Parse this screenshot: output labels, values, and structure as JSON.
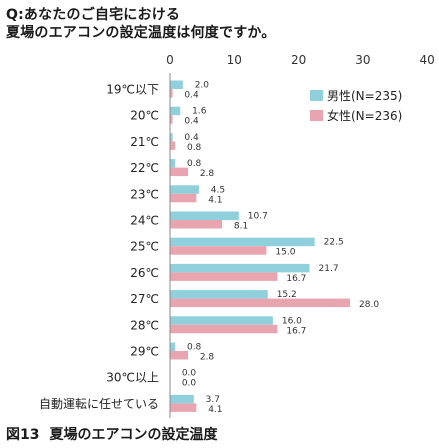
{
  "header": {
    "question_line1": "Q:あなたのご自宅における",
    "question_line2": "夏場のエアコンの設定温度は何度ですか。"
  },
  "caption": {
    "number": "図13",
    "text": "夏場のエアコンの設定温度"
  },
  "colors": {
    "male": "#8fd0dc",
    "female": "#e8a5b0"
  },
  "chart_data": {
    "type": "bar",
    "orientation": "horizontal",
    "categories": [
      "19℃以下",
      "20℃",
      "21℃",
      "22℃",
      "23℃",
      "24℃",
      "25℃",
      "26℃",
      "27℃",
      "28℃",
      "29℃",
      "30℃以上",
      "自動運転に任せている"
    ],
    "series": [
      {
        "name": "男性(N=235)",
        "values": [
          2.0,
          1.6,
          0.4,
          0.8,
          4.5,
          10.7,
          22.5,
          21.7,
          15.2,
          16.0,
          0.8,
          0.0,
          3.7
        ]
      },
      {
        "name": "女性(N=236)",
        "values": [
          0.4,
          0.4,
          0.8,
          2.8,
          4.1,
          8.1,
          15.0,
          16.7,
          28.0,
          16.7,
          2.8,
          0.0,
          4.1
        ]
      }
    ],
    "value_labels": {
      "male": [
        "2.0",
        "1.6",
        "0.4",
        "0.8",
        "4.5",
        "10.7",
        "22.5",
        "21.7",
        "15.2",
        "16.0",
        "0.8",
        "0.0",
        "3.7"
      ],
      "female": [
        "0.4",
        "0.4",
        "0.8",
        "2.8",
        "4.1",
        "8.1",
        "15.0",
        "16.7",
        "28.0",
        "16.7",
        "2.8",
        "0.0",
        "4.1"
      ]
    },
    "x_ticks": [
      "0",
      "10",
      "20",
      "30",
      "40"
    ],
    "x_tick_values": [
      0,
      10,
      20,
      30,
      40
    ],
    "unit_label": "(%)",
    "xlim": [
      0,
      40
    ],
    "legend_position": "top-right",
    "grid": false
  }
}
